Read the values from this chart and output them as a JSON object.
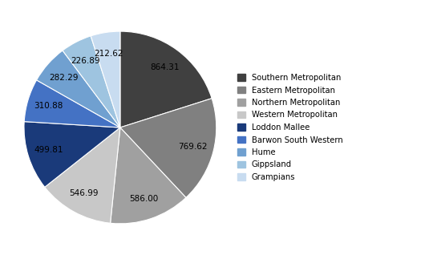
{
  "labels": [
    "Southern Metropolitan",
    "Eastern Metropolitan",
    "Northern Metropolitan",
    "Western Metropolitan",
    "Loddon Mallee",
    "Barwon South Western",
    "Hume",
    "Gippsland",
    "Grampians"
  ],
  "values": [
    864.31,
    769.62,
    586.0,
    546.99,
    499.81,
    310.88,
    282.29,
    226.89,
    212.62
  ],
  "colors": [
    "#404040",
    "#808080",
    "#A0A0A0",
    "#C8C8C8",
    "#1A3A7A",
    "#4472C4",
    "#70A0D0",
    "#9EC4E0",
    "#C8DCF0"
  ],
  "figsize": [
    5.45,
    3.18
  ],
  "dpi": 100,
  "startangle": 90,
  "pctdistance": 0.78,
  "label_fontsize": 7.5,
  "legend_fontsize": 7.2
}
